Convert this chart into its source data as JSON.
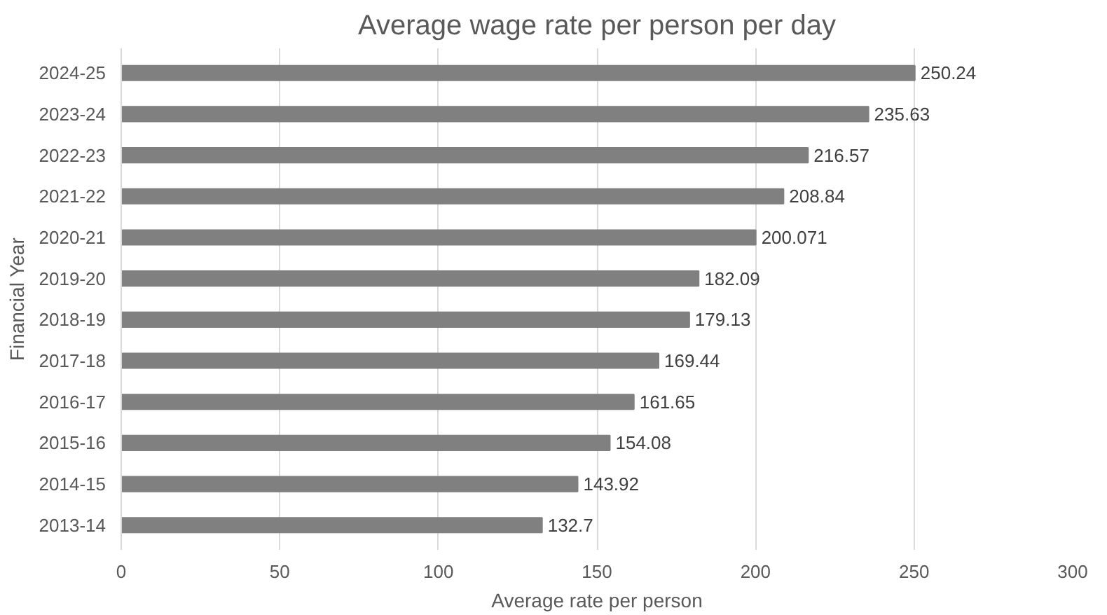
{
  "chart_data": {
    "type": "bar",
    "orientation": "horizontal",
    "title": "Average wage rate per person per day",
    "xlabel": "Average rate per person",
    "ylabel": "Financial Year",
    "categories": [
      "2024-25",
      "2023-24",
      "2022-23",
      "2021-22",
      "2020-21",
      "2019-20",
      "2018-19",
      "2017-18",
      "2016-17",
      "2015-16",
      "2014-15",
      "2013-14"
    ],
    "values": [
      250.24,
      235.63,
      216.57,
      208.84,
      200.071,
      182.09,
      179.13,
      169.44,
      161.65,
      154.08,
      143.92,
      132.7
    ],
    "color": "#808080",
    "xlim": [
      0,
      300
    ],
    "xticks": [
      0,
      50,
      100,
      150,
      200,
      250,
      300
    ],
    "grid": "x",
    "data_labels": true
  }
}
